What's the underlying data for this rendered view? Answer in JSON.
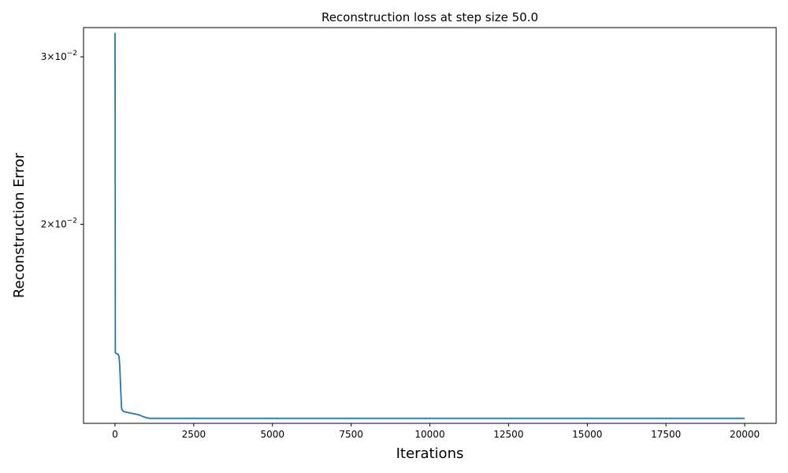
{
  "chart_data": {
    "type": "line",
    "title": "Reconstruction loss at step size 50.0",
    "xlabel": "Iterations",
    "ylabel": "Reconstruction Error",
    "xlim": [
      -1000,
      21000
    ],
    "ylim": [
      0.01235,
      0.0322
    ],
    "yscale": "log",
    "grid": false,
    "legend": "none",
    "x_ticks": [
      {
        "value": 0,
        "label": "0"
      },
      {
        "value": 2500,
        "label": "2500"
      },
      {
        "value": 5000,
        "label": "5000"
      },
      {
        "value": 7500,
        "label": "7500"
      },
      {
        "value": 10000,
        "label": "10000"
      },
      {
        "value": 12500,
        "label": "12500"
      },
      {
        "value": 15000,
        "label": "15000"
      },
      {
        "value": 17500,
        "label": "17500"
      },
      {
        "value": 20000,
        "label": "20000"
      }
    ],
    "y_ticks": [
      {
        "value": 0.02,
        "mantissa": "2",
        "base": "10",
        "exponent": "−2"
      },
      {
        "value": 0.03,
        "mantissa": "3",
        "base": "10",
        "exponent": "−2"
      }
    ],
    "series": [
      {
        "color": "#1f77b4",
        "x": [
          0,
          5,
          10,
          50,
          100,
          130,
          150,
          170,
          190,
          210,
          230,
          260,
          300,
          400,
          500,
          600,
          700,
          800,
          900,
          1000,
          1100,
          1200,
          1500,
          2000,
          3000,
          5000,
          10000,
          15000,
          20000
        ],
        "y": [
          0.0318,
          0.0257,
          0.01465,
          0.01462,
          0.0146,
          0.0145,
          0.0142,
          0.0137,
          0.0132,
          0.0128,
          0.01275,
          0.01272,
          0.0127,
          0.01268,
          0.01266,
          0.01264,
          0.01262,
          0.01259,
          0.01255,
          0.01252,
          0.0125,
          0.0125,
          0.0125,
          0.0125,
          0.0125,
          0.0125,
          0.0125,
          0.0125,
          0.0125
        ]
      }
    ]
  }
}
